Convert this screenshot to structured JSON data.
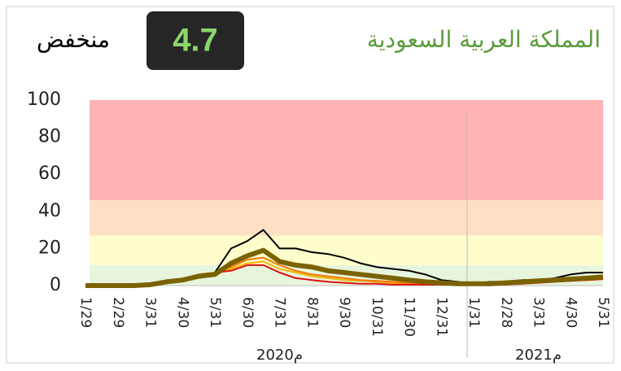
{
  "chart_data": {
    "type": "line",
    "title": "المملكة العربية السعودية",
    "headline_value": 4.7,
    "status": "منخفض",
    "year_labels": [
      "2020م",
      "2021م"
    ],
    "categories": [
      "1/29",
      null,
      "2/29",
      null,
      "3/31",
      null,
      "4/30",
      null,
      "5/31",
      null,
      "6/30",
      null,
      "7/31",
      null,
      "8/31",
      null,
      "9/30",
      null,
      "10/31",
      null,
      "11/30",
      null,
      "12/31",
      null,
      "1/31",
      null,
      "2/28",
      null,
      "3/31",
      null,
      "4/30",
      null,
      "5/31"
    ],
    "series": [
      {
        "color": "#000000",
        "width": 2,
        "values": [
          0,
          0,
          0,
          0,
          1,
          2,
          3,
          5,
          7,
          20,
          24,
          30,
          20,
          20,
          18,
          17,
          15,
          12,
          10,
          9,
          8,
          6,
          3,
          2,
          1,
          2,
          2,
          3,
          3,
          4,
          6,
          7,
          7
        ]
      },
      {
        "color": "#f0b400",
        "width": 2,
        "values": [
          0,
          0,
          0,
          0,
          0.5,
          2,
          3,
          5,
          6,
          9,
          12,
          13,
          9,
          7,
          5,
          4,
          3,
          2.5,
          2,
          1.5,
          1,
          1,
          1,
          0.5,
          0.5,
          0.5,
          1,
          1.5,
          2,
          2.5,
          3,
          3,
          3.5
        ]
      },
      {
        "color": "#f07800",
        "width": 2,
        "values": [
          0,
          0,
          0,
          0,
          0.5,
          2,
          3,
          6,
          7,
          10,
          14,
          15,
          11,
          8,
          6,
          5,
          4,
          3,
          2.5,
          2,
          1.5,
          1,
          1,
          0.5,
          0.5,
          0.5,
          1,
          1.5,
          2,
          2.5,
          3,
          3,
          3.5
        ]
      },
      {
        "color": "#e01010",
        "width": 2,
        "values": [
          0,
          0,
          0,
          0,
          0.5,
          2,
          3,
          5,
          7,
          8,
          11,
          11,
          7,
          4,
          3,
          2,
          1.5,
          1,
          1,
          0.5,
          0.5,
          0.5,
          0.5,
          0.5,
          0.5,
          0.5,
          0.5,
          1,
          1.5,
          2,
          2.5,
          3,
          3.5
        ]
      },
      {
        "color": "#7a6200",
        "width": 6,
        "values": [
          0,
          0,
          0,
          0,
          0.5,
          2,
          3,
          5,
          6,
          12,
          16,
          19,
          13,
          11,
          10,
          8,
          7,
          6,
          5,
          4,
          3,
          2,
          1.5,
          1,
          1,
          1,
          1.5,
          2,
          2.5,
          3,
          3.5,
          4,
          4.7
        ]
      }
    ],
    "bands": [
      {
        "from": 0,
        "to": 11,
        "color": "#e8f5dd"
      },
      {
        "from": 11,
        "to": 27,
        "color": "#fefdcc"
      },
      {
        "from": 27,
        "to": 46,
        "color": "#fde0c4"
      },
      {
        "from": 46,
        "to": 100,
        "color": "#ffb3b3"
      }
    ],
    "ylim": [
      0,
      100
    ],
    "yticks": [
      0,
      20,
      40,
      60,
      80,
      100
    ]
  }
}
